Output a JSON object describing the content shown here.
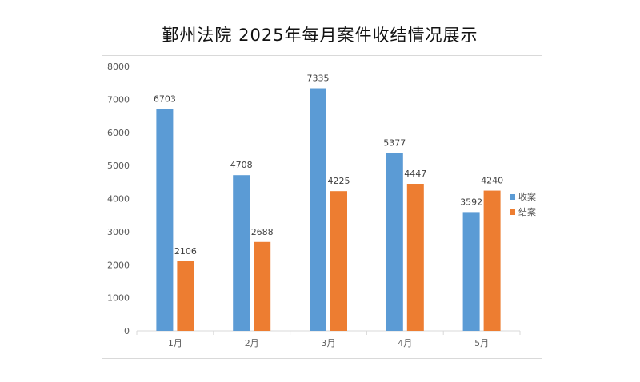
{
  "chart_title": "鄞州法院 2025年每月案件收结情况展示",
  "chart_data": {
    "type": "bar",
    "title": "鄞州法院 2025年每月案件收结情况展示",
    "xlabel": "",
    "ylabel": "",
    "categories": [
      "1月",
      "2月",
      "3月",
      "4月",
      "5月"
    ],
    "series": [
      {
        "name": "收案",
        "color": "#5b9bd5",
        "values": [
          6703,
          4708,
          7335,
          5377,
          3592
        ]
      },
      {
        "name": "结案",
        "color": "#ed7d31",
        "values": [
          2106,
          2688,
          4225,
          4447,
          4240
        ]
      }
    ],
    "ylim": [
      0,
      8000
    ],
    "yticks": [
      0,
      1000,
      2000,
      3000,
      4000,
      5000,
      6000,
      7000,
      8000
    ],
    "data_labels": true,
    "grid": false,
    "legend_position": "right"
  }
}
